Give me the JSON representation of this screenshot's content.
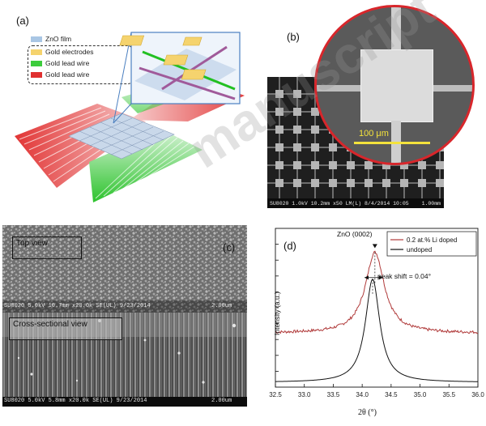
{
  "panel_a": {
    "label": "(a)",
    "legend": [
      {
        "text": "ZnO film",
        "color": "#a9c6e4"
      },
      {
        "text": "Gold electrodes",
        "color": "#f5d36e"
      },
      {
        "text": "Gold lead wire",
        "color": "#3ccc3c"
      },
      {
        "text": "Gold lead wire",
        "color": "#e03030"
      }
    ]
  },
  "panel_b": {
    "label": "(b)",
    "scale_label": "100 μm",
    "footer": "SU8020 1.0kV 10.2mm x50 LM(L) 8/4/2014 10:05",
    "footer_scale": "1.00mm"
  },
  "panel_c": {
    "label": "(c)",
    "top_label": "Top view",
    "top_footer": "SU8020 5.0kV 10.7mm x20.0k SE(UL) 9/23/2014",
    "top_scale": "2.00um",
    "cross_label": "Cross-sectional view",
    "cross_footer": "SU8020 5.0kV 5.8mm x20.0k SE(UL) 9/23/2014",
    "cross_scale": "2.00um"
  },
  "panel_d": {
    "label": "(d)",
    "peak_label": "ZnO (0002)",
    "annotation": "peak shift = 0.04°"
  },
  "watermark": "manuscript",
  "chart_data": {
    "type": "line",
    "title": "ZnO (0002)",
    "xlabel": "2θ (°)",
    "ylabel": "Intensity (a.u.)",
    "xlim": [
      32.5,
      36.0
    ],
    "x_ticks": [
      "32.5",
      "33.0",
      "33.5",
      "34.0",
      "34.5",
      "35.0",
      "35.5",
      "36.0"
    ],
    "y_ticks_labeled": false,
    "legend_position": "top-right",
    "series": [
      {
        "name": "0.2 at.% Li doped",
        "color": "#b03a3a",
        "peak_x": 34.22,
        "peak_y": 0.85,
        "baseline": 0.34,
        "fwhm": 0.4
      },
      {
        "name": "undoped",
        "color": "#111111",
        "peak_x": 34.18,
        "peak_y": 0.68,
        "baseline": 0.03,
        "fwhm": 0.3
      }
    ]
  }
}
